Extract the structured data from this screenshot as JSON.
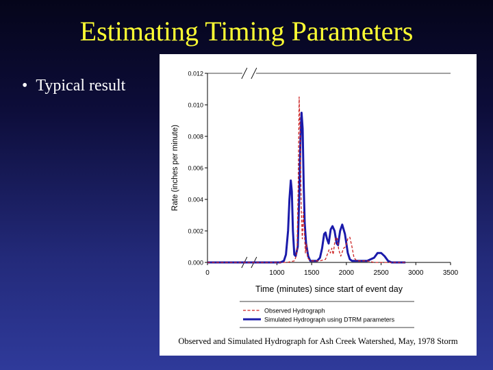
{
  "slide": {
    "title": "Estimating Timing Parameters",
    "bullets": [
      "Typical result"
    ]
  },
  "colors": {
    "title": "#ffff33",
    "bullet_text": "#ffffff",
    "observed": "#cc2222",
    "simulated": "#1a1aaa"
  },
  "chart_data": {
    "type": "line",
    "title": "Observed and Simulated Hydrograph for Ash Creek Watershed, May, 1978 Storm",
    "xlabel": "Time (minutes) since start of event day",
    "ylabel": "Rate (inches per minute)",
    "xlim": [
      0,
      3500
    ],
    "ylim": [
      0,
      0.012
    ],
    "x_ticks": [
      0,
      1000,
      1500,
      2000,
      2500,
      3000,
      3500
    ],
    "y_ticks": [
      "0.000",
      "0.002",
      "0.004",
      "0.006",
      "0.008",
      "0.010",
      "0.012"
    ],
    "grid": false,
    "axis_break": true,
    "legend_position": "bottom",
    "series": [
      {
        "name": "Observed Hydrograph",
        "style": "dashed",
        "color": "#cc2222",
        "x": [
          0,
          1000,
          1150,
          1250,
          1270,
          1290,
          1305,
          1320,
          1335,
          1350,
          1365,
          1380,
          1395,
          1410,
          1425,
          1440,
          1460,
          1490,
          1550,
          1620,
          1700,
          1750,
          1770,
          1790,
          1810,
          1830,
          1850,
          1870,
          1890,
          1920,
          1960,
          1990,
          2020,
          2050,
          2080,
          2110,
          2150,
          2200,
          2300,
          2400,
          2500,
          2600,
          2700,
          2850
        ],
        "y": [
          0,
          0,
          0,
          0.0001,
          0.0003,
          0.0008,
          0.0045,
          0.0105,
          0.008,
          0.0035,
          0.0015,
          0.0032,
          0.002,
          0.0006,
          0.0012,
          0.0003,
          0.0002,
          0.0001,
          0.0001,
          0.0001,
          0.0002,
          0.0008,
          0.0006,
          0.0009,
          0.0005,
          0.0012,
          0.0016,
          0.0015,
          0.0008,
          0.0004,
          0.0009,
          0.001,
          0.0015,
          0.0016,
          0.001,
          0.0003,
          0.0001,
          0.0001,
          0.0001,
          0,
          0,
          0,
          0,
          0
        ]
      },
      {
        "name": "Simulated Hydrograph using DTRM parameters",
        "style": "solid",
        "color": "#1a1aaa",
        "x": [
          0,
          1000,
          1050,
          1100,
          1130,
          1160,
          1180,
          1200,
          1215,
          1230,
          1250,
          1270,
          1300,
          1320,
          1340,
          1355,
          1370,
          1385,
          1400,
          1420,
          1450,
          1480,
          1530,
          1580,
          1620,
          1650,
          1680,
          1700,
          1720,
          1745,
          1775,
          1800,
          1830,
          1860,
          1880,
          1910,
          1940,
          1980,
          2020,
          2050,
          2080,
          2110,
          2150,
          2200,
          2300,
          2400,
          2450,
          2500,
          2550,
          2600,
          2650,
          2750,
          2850
        ],
        "y": [
          0,
          0,
          0,
          0.0001,
          0.0005,
          0.002,
          0.004,
          0.0052,
          0.0045,
          0.002,
          0.0005,
          0.0004,
          0.001,
          0.004,
          0.008,
          0.0095,
          0.0085,
          0.005,
          0.0025,
          0.0012,
          0.0004,
          0.0001,
          0.0001,
          0.0001,
          0.0003,
          0.0009,
          0.0018,
          0.0019,
          0.0015,
          0.0012,
          0.0021,
          0.0023,
          0.002,
          0.0012,
          0.0011,
          0.002,
          0.0024,
          0.0018,
          0.0006,
          0.0002,
          0.0001,
          0.0001,
          0.0001,
          0.0001,
          0.0001,
          0.0003,
          0.0006,
          0.0006,
          0.0004,
          0.0001,
          0,
          0,
          0
        ]
      }
    ]
  }
}
